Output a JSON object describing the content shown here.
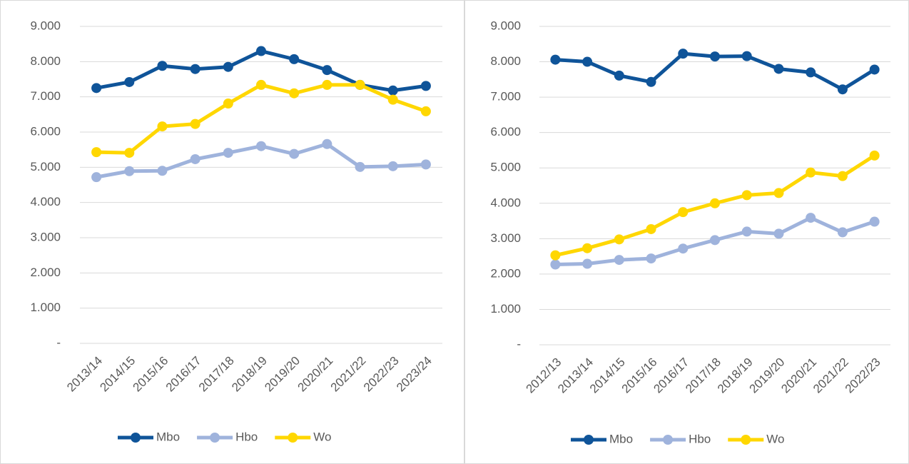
{
  "chart_data": [
    {
      "type": "line",
      "categories": [
        "2013/14",
        "2014/15",
        "2015/16",
        "2016/17",
        "2017/18",
        "2018/19",
        "2019/20",
        "2020/21",
        "2021/22",
        "2022/23",
        "2023/24"
      ],
      "series": [
        {
          "name": "Mbo",
          "color": "#0f5499",
          "values": [
            7250,
            7420,
            7880,
            7790,
            7850,
            8300,
            8070,
            7760,
            7340,
            7180,
            7310
          ]
        },
        {
          "name": "Hbo",
          "color": "#9fb3dc",
          "values": [
            4720,
            4890,
            4900,
            5230,
            5410,
            5600,
            5380,
            5660,
            5010,
            5030,
            5080
          ]
        },
        {
          "name": "Wo",
          "color": "#ffd700",
          "values": [
            5430,
            5410,
            6160,
            6230,
            6810,
            7340,
            7100,
            7340,
            7340,
            6920,
            6590
          ]
        }
      ],
      "ylim": [
        0,
        9000
      ],
      "yticks": [
        {
          "value": 0,
          "label": "-"
        },
        {
          "value": 1000,
          "label": "1.000"
        },
        {
          "value": 2000,
          "label": "2.000"
        },
        {
          "value": 3000,
          "label": "3.000"
        },
        {
          "value": 4000,
          "label": "4.000"
        },
        {
          "value": 5000,
          "label": "5.000"
        },
        {
          "value": 6000,
          "label": "6.000"
        },
        {
          "value": 7000,
          "label": "7.000"
        },
        {
          "value": 8000,
          "label": "8.000"
        },
        {
          "value": 9000,
          "label": "9.000"
        }
      ],
      "grid": true,
      "legend": "bottom"
    },
    {
      "type": "line",
      "categories": [
        "2012/13",
        "2013/14",
        "2014/15",
        "2015/16",
        "2016/17",
        "2017/18",
        "2018/19",
        "2019/20",
        "2020/21",
        "2021/22",
        "2022/23"
      ],
      "series": [
        {
          "name": "Mbo",
          "color": "#0f5499",
          "values": [
            8060,
            8000,
            7610,
            7430,
            8230,
            8150,
            8160,
            7800,
            7700,
            7220,
            7780
          ]
        },
        {
          "name": "Hbo",
          "color": "#9fb3dc",
          "values": [
            2270,
            2290,
            2400,
            2440,
            2720,
            2960,
            3200,
            3140,
            3590,
            3180,
            3480
          ]
        },
        {
          "name": "Wo",
          "color": "#ffd700",
          "values": [
            2530,
            2730,
            2980,
            3270,
            3750,
            4000,
            4230,
            4290,
            4870,
            4770,
            5350
          ]
        }
      ],
      "ylim": [
        0,
        9000
      ],
      "yticks": [
        {
          "value": 0,
          "label": "-"
        },
        {
          "value": 1000,
          "label": "1.000"
        },
        {
          "value": 2000,
          "label": "2.000"
        },
        {
          "value": 3000,
          "label": "3.000"
        },
        {
          "value": 4000,
          "label": "4.000"
        },
        {
          "value": 5000,
          "label": "5.000"
        },
        {
          "value": 6000,
          "label": "6.000"
        },
        {
          "value": 7000,
          "label": "7.000"
        },
        {
          "value": 8000,
          "label": "8.000"
        },
        {
          "value": 9000,
          "label": "9.000"
        }
      ],
      "grid": true,
      "legend": "bottom"
    }
  ]
}
